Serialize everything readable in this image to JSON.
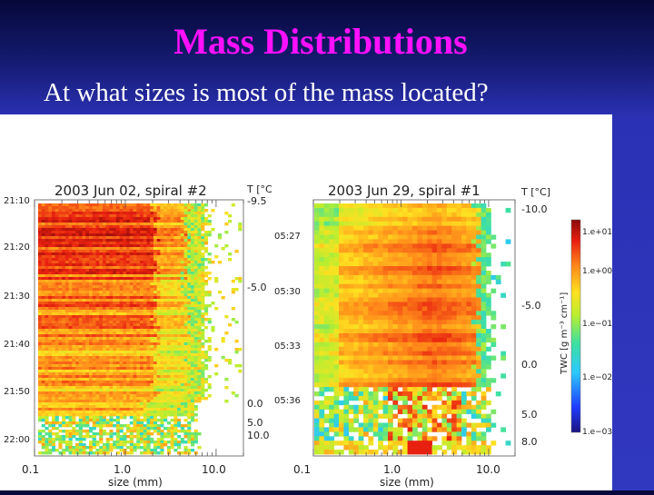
{
  "slide": {
    "title": "Mass Distributions",
    "question": "At what sizes is most of the mass located?"
  },
  "colors": {
    "title": "#ff10ff",
    "background_top": "#06083a",
    "background_bottom": "#3138c0"
  },
  "chart_data": [
    {
      "type": "heatmap",
      "title": "2003 Jun 02, spiral #2",
      "xlabel": "size (mm)",
      "xscale": "log",
      "xlim": [
        0.1,
        20
      ],
      "x_ticks": [
        "0.1",
        "1.0",
        "10.0"
      ],
      "ylabel": "",
      "y_ticks": [
        "21:10",
        "21:20",
        "21:30",
        "21:40",
        "21:50",
        "22:00"
      ],
      "right_axis_label": "T [°C",
      "right_ticks": [
        "-9.5",
        "-5.0",
        "0.0",
        "5.0",
        "10.0"
      ],
      "description_values": {
        "peak_size_range_mm": [
          0.1,
          3.0
        ],
        "outer_edge_size_mm": 5.0
      }
    },
    {
      "type": "heatmap",
      "title": "2003 Jun 29, spiral #1",
      "xlabel": "size (mm)",
      "xscale": "log",
      "xlim": [
        0.1,
        20
      ],
      "x_ticks": [
        "0.1",
        "1.0",
        "10.0"
      ],
      "ylabel": "",
      "y_ticks": [
        "05:27",
        "05:30",
        "05:33",
        "05:36"
      ],
      "right_axis_label": "T [°C]",
      "right_ticks": [
        "-10.0",
        "-5.0",
        "0.0",
        "5.0",
        "8.0"
      ],
      "description_values": {
        "peak_size_range_mm": [
          0.5,
          4.0
        ],
        "outer_edge_size_mm": 7.0
      }
    }
  ],
  "colorbar": {
    "label": "TWC [g m⁻³ cm⁻¹]",
    "ticks": [
      "1.e+01",
      "1.e+00",
      "1.e−01",
      "1.e−02",
      "1.e−03"
    ],
    "scale": "log",
    "range": [
      0.001,
      10
    ]
  }
}
